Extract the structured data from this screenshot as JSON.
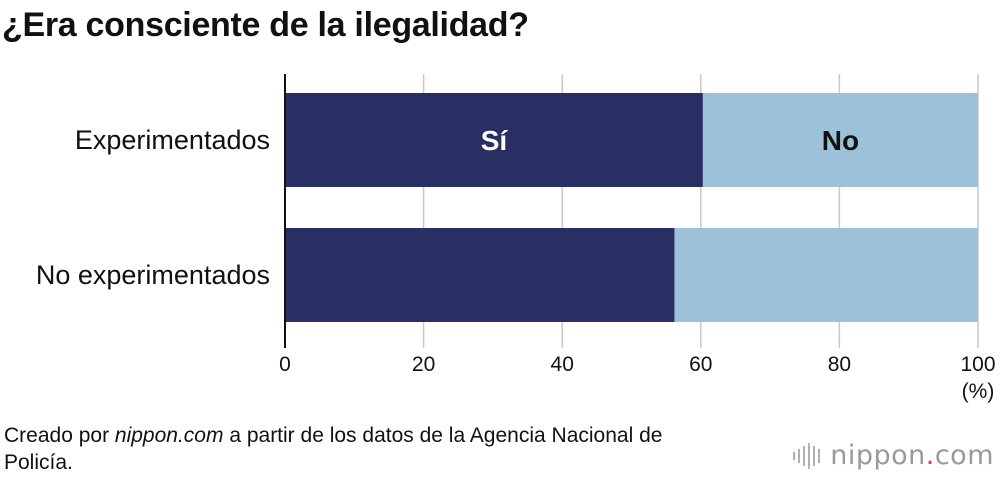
{
  "page": {
    "title": "¿Era consciente de la ilegalidad?",
    "source_prefix": "Creado por ",
    "source_site": "nippon.com",
    "source_suffix": " a partir de los datos de la Agencia Nacional de Policía.",
    "logo_left": "nippon",
    "logo_dot": ".",
    "logo_right": "com"
  },
  "chart_data": {
    "type": "bar",
    "orientation": "horizontal",
    "stacked": true,
    "categories": [
      "Experimentados",
      "No experimentados"
    ],
    "series": [
      {
        "name": "Sí",
        "values": [
          60.3,
          56.2
        ],
        "color": "#2a2f63",
        "label_color": "#ffffff"
      },
      {
        "name": "No",
        "values": [
          39.7,
          43.8
        ],
        "color": "#9bc2d9",
        "label_color": "#111111"
      }
    ],
    "series_labels_on_category": "Experimentados",
    "xlim": [
      0,
      100
    ],
    "xticks": [
      0,
      20,
      40,
      60,
      80,
      100
    ],
    "xunit": "(%)",
    "grid": true,
    "legend": "none"
  }
}
